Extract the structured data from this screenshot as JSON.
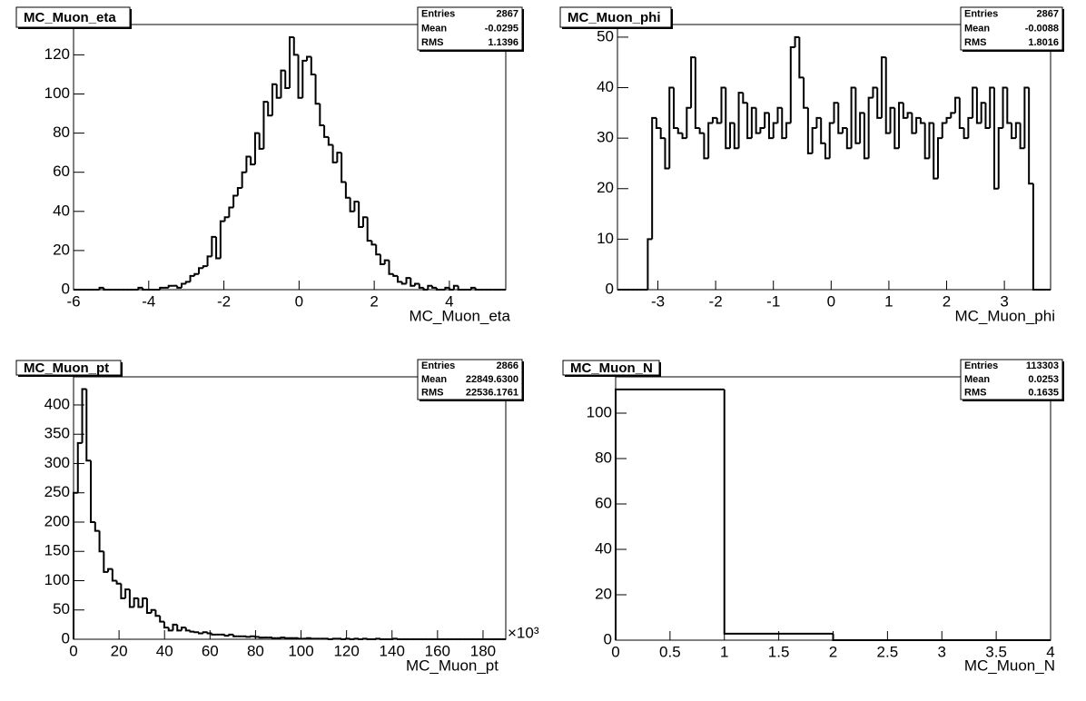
{
  "chart_data": [
    {
      "type": "histogram",
      "title": "MC_Muon_eta",
      "xlabel": "MC_Muon_eta",
      "color": "#000000",
      "stats": [
        {
          "label": "Entries",
          "value": "2867"
        },
        {
          "label": "Mean",
          "value": "-0.0295"
        },
        {
          "label": "RMS",
          "value": "1.1396"
        }
      ],
      "xlim": [
        -6,
        5.5
      ],
      "ylim": [
        0,
        135.5
      ],
      "xticks": [
        -6,
        -4,
        -2,
        0,
        2,
        4
      ],
      "yticks": [
        0,
        20,
        40,
        60,
        80,
        100,
        120
      ],
      "bins": [
        -6,
        -5.885,
        -5.77,
        -5.655,
        -5.54,
        -5.425,
        -5.31,
        -5.195,
        -5.08,
        -4.965,
        -4.85,
        -4.735,
        -4.62,
        -4.505,
        -4.39,
        -4.275,
        -4.16,
        -4.045,
        -3.93,
        -3.815,
        -3.7,
        -3.585,
        -3.47,
        -3.355,
        -3.24,
        -3.125,
        -3.01,
        -2.895,
        -2.78,
        -2.665,
        -2.55,
        -2.435,
        -2.32,
        -2.205,
        -2.09,
        -1.975,
        -1.86,
        -1.745,
        -1.63,
        -1.515,
        -1.4,
        -1.285,
        -1.17,
        -1.055,
        -0.94,
        -0.825,
        -0.71,
        -0.595,
        -0.48,
        -0.365,
        -0.25,
        -0.135,
        -0.02,
        0.095,
        0.21,
        0.325,
        0.44,
        0.555,
        0.67,
        0.785,
        0.9,
        1.015,
        1.13,
        1.245,
        1.36,
        1.475,
        1.59,
        1.705,
        1.82,
        1.935,
        2.05,
        2.165,
        2.28,
        2.395,
        2.51,
        2.625,
        2.74,
        2.855,
        2.97,
        3.085,
        3.2,
        3.315,
        3.43,
        3.545,
        3.66,
        3.775,
        3.89,
        4.005,
        4.12,
        4.235,
        4.35,
        4.465,
        4.58,
        4.695,
        4.81,
        4.925,
        5.04,
        5.155,
        5.27,
        5.385,
        5.5
      ],
      "values": [
        0,
        0,
        0,
        0,
        0,
        0,
        1,
        0,
        0,
        0,
        0,
        0,
        0,
        0,
        0,
        1,
        0,
        0,
        0,
        0,
        1,
        1,
        2,
        2,
        1,
        3,
        4,
        7,
        8,
        11,
        12,
        17,
        27,
        16,
        35,
        37,
        42,
        48,
        52,
        60,
        68,
        64,
        80,
        72,
        96,
        89,
        105,
        98,
        112,
        103,
        129,
        120,
        98,
        117,
        119,
        110,
        95,
        84,
        78,
        74,
        65,
        70,
        55,
        47,
        40,
        45,
        32,
        37,
        25,
        23,
        18,
        13,
        15,
        8,
        7,
        4,
        3,
        6,
        2,
        3,
        1,
        0,
        2,
        1,
        0,
        0,
        1,
        0,
        2,
        0,
        0,
        0,
        1,
        0,
        0,
        0,
        0,
        0,
        0,
        0
      ]
    },
    {
      "type": "histogram",
      "title": "MC_Muon_phi",
      "xlabel": "MC_Muon_phi",
      "color": "#000000",
      "stats": [
        {
          "label": "Entries",
          "value": "2867"
        },
        {
          "label": "Mean",
          "value": "-0.0088"
        },
        {
          "label": "RMS",
          "value": "1.8016"
        }
      ],
      "xlim": [
        -3.7,
        3.8
      ],
      "ylim": [
        0,
        52.5
      ],
      "xticks": [
        -3,
        -2,
        -1,
        0,
        1,
        2,
        3
      ],
      "yticks": [
        0,
        10,
        20,
        30,
        40,
        50
      ],
      "bins": [
        -3.7,
        -3.625,
        -3.55,
        -3.475,
        -3.4,
        -3.325,
        -3.25,
        -3.175,
        -3.1,
        -3.025,
        -2.95,
        -2.875,
        -2.8,
        -2.725,
        -2.65,
        -2.575,
        -2.5,
        -2.425,
        -2.35,
        -2.275,
        -2.2,
        -2.125,
        -2.05,
        -1.975,
        -1.9,
        -1.825,
        -1.75,
        -1.675,
        -1.6,
        -1.525,
        -1.45,
        -1.375,
        -1.3,
        -1.225,
        -1.15,
        -1.075,
        -1,
        -0.925,
        -0.85,
        -0.775,
        -0.7,
        -0.625,
        -0.55,
        -0.475,
        -0.4,
        -0.325,
        -0.25,
        -0.175,
        -0.1,
        -0.025,
        0.05,
        0.125,
        0.2,
        0.275,
        0.35,
        0.425,
        0.5,
        0.575,
        0.65,
        0.725,
        0.8,
        0.875,
        0.95,
        1.025,
        1.1,
        1.175,
        1.25,
        1.325,
        1.4,
        1.475,
        1.55,
        1.625,
        1.7,
        1.775,
        1.85,
        1.925,
        2,
        2.075,
        2.15,
        2.225,
        2.3,
        2.375,
        2.45,
        2.525,
        2.6,
        2.675,
        2.75,
        2.825,
        2.9,
        2.975,
        3.05,
        3.125,
        3.2,
        3.275,
        3.35,
        3.425,
        3.5,
        3.575,
        3.65,
        3.725,
        3.8
      ],
      "values": [
        0,
        0,
        0,
        0,
        0,
        0,
        0,
        10,
        34,
        32,
        30,
        24,
        40,
        32,
        31,
        30,
        36,
        46,
        32,
        31,
        26,
        33,
        34,
        33,
        40,
        28,
        33,
        28,
        39,
        37,
        30,
        36,
        31,
        32,
        35,
        30,
        33,
        36,
        30,
        33,
        48,
        50,
        42,
        36,
        27,
        32,
        34,
        29,
        26,
        33,
        37,
        31,
        32,
        28,
        40,
        29,
        35,
        26,
        38,
        40,
        34,
        46,
        31,
        36,
        28,
        37,
        34,
        35,
        31,
        34,
        33,
        26,
        33,
        22,
        30,
        33,
        34,
        35,
        38,
        32,
        30,
        34,
        40,
        33,
        37,
        32,
        40,
        20,
        32,
        40,
        33,
        30,
        33,
        28,
        40,
        21,
        0,
        0,
        0,
        0
      ]
    },
    {
      "type": "histogram",
      "title": "MC_Muon_pt",
      "xlabel": "MC_Muon_pt",
      "x_multiplier": "×10³",
      "color": "#000000",
      "stats": [
        {
          "label": "Entries",
          "value": "2866"
        },
        {
          "label": "Mean",
          "value": "22849.6300"
        },
        {
          "label": "RMS",
          "value": "22536.1761"
        }
      ],
      "xlim": [
        0,
        190
      ],
      "ylim": [
        0,
        448
      ],
      "xticks": [
        0,
        20,
        40,
        60,
        80,
        100,
        120,
        140,
        160,
        180
      ],
      "yticks": [
        0,
        50,
        100,
        150,
        200,
        250,
        300,
        350,
        400
      ],
      "bins": [
        0,
        1.9,
        3.8,
        5.7,
        7.6,
        9.5,
        11.4,
        13.3,
        15.2,
        17.1,
        19,
        20.9,
        22.8,
        24.7,
        26.6,
        28.5,
        30.4,
        32.3,
        34.2,
        36.1,
        38,
        39.9,
        41.8,
        43.7,
        45.6,
        47.5,
        49.4,
        51.3,
        53.2,
        55.1,
        57,
        58.9,
        60.8,
        62.7,
        64.6,
        66.5,
        68.4,
        70.3,
        72.2,
        74.1,
        76,
        77.9,
        79.8,
        81.7,
        83.6,
        85.5,
        87.4,
        89.3,
        91.2,
        93.1,
        95,
        96.9,
        98.8,
        100.7,
        102.6,
        104.5,
        106.4,
        108.3,
        110.2,
        112.1,
        114,
        115.9,
        117.8,
        119.7,
        121.6,
        123.5,
        125.4,
        127.3,
        129.2,
        131.1,
        133,
        134.9,
        136.8,
        138.7,
        140.6,
        142.5,
        144.4,
        146.3,
        148.2,
        150.1,
        152,
        153.9,
        155.8,
        157.7,
        159.6,
        161.5,
        163.4,
        165.3,
        167.2,
        169.1,
        171,
        172.9,
        174.8,
        176.7,
        178.6,
        180.5,
        182.4,
        184.3,
        186.2,
        188.1,
        190
      ],
      "values": [
        250,
        335,
        427,
        305,
        200,
        185,
        150,
        115,
        120,
        100,
        95,
        70,
        85,
        55,
        70,
        55,
        70,
        45,
        50,
        40,
        30,
        20,
        15,
        25,
        15,
        20,
        15,
        13,
        12,
        10,
        12,
        10,
        8,
        8,
        8,
        6,
        8,
        5,
        5,
        5,
        4,
        5,
        4,
        3,
        3,
        3,
        2,
        2,
        3,
        2,
        2,
        2,
        1,
        1,
        2,
        1,
        1,
        1,
        1,
        0,
        1,
        1,
        0,
        1,
        0,
        1,
        0,
        1,
        0,
        0,
        1,
        0,
        0,
        0,
        1,
        0,
        0,
        0,
        0,
        0,
        0,
        0,
        0,
        0,
        0,
        0,
        0,
        0,
        0,
        0,
        0,
        0,
        0,
        0,
        0,
        0,
        0,
        0,
        0,
        0
      ]
    },
    {
      "type": "histogram",
      "title": "MC_Muon_N",
      "xlabel": "MC_Muon_N",
      "color": "#000000",
      "stats": [
        {
          "label": "Entries",
          "value": "113303"
        },
        {
          "label": "Mean",
          "value": "0.0253"
        },
        {
          "label": "RMS",
          "value": "0.1635"
        }
      ],
      "xlim": [
        0,
        4
      ],
      "ylim": [
        0,
        116
      ],
      "xticks": [
        0,
        0.5,
        1,
        1.5,
        2,
        2.5,
        3,
        3.5,
        4
      ],
      "yticks": [
        0,
        20,
        40,
        60,
        80,
        100
      ],
      "bins": [
        0,
        1,
        2,
        3,
        4
      ],
      "values": [
        110.46,
        2.83,
        0.02,
        0
      ]
    }
  ]
}
